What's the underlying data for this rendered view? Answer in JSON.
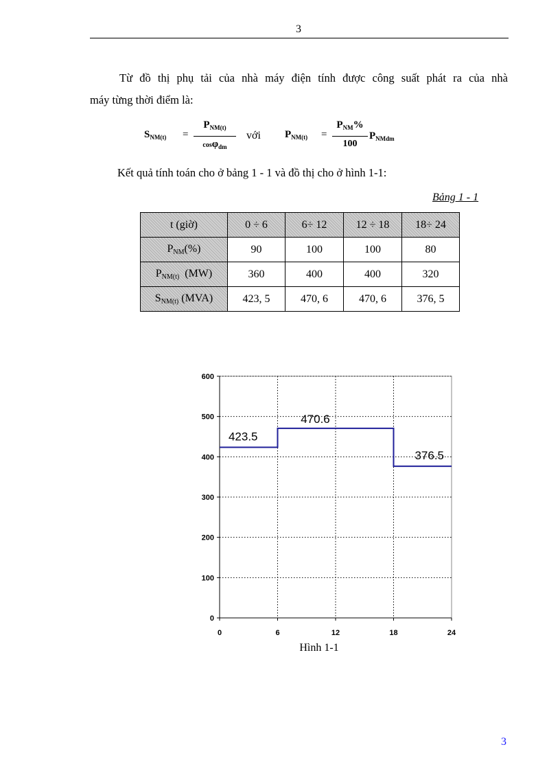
{
  "page": {
    "top_number": "3",
    "bottom_number": "3"
  },
  "paragraph1": {
    "line1": "Từ đồ thị phụ tải của nhà máy điện tính được công suất phát ra của nhà",
    "line2": "máy từng thời điểm là:"
  },
  "formula": {
    "lhs": "S",
    "lhs_sub": "NM(t)",
    "eq": "=",
    "num1": "P",
    "num1_sub": "NM(t)",
    "den1_cos": "cos",
    "den1_phi": "φ",
    "den1_sub": "dm",
    "connector": "với",
    "lhs2": "P",
    "lhs2_sub": "NM(t)",
    "eq2": "=",
    "num2": "P",
    "num2_sub": "NM",
    "num2_pct": "%",
    "den2": "100",
    "rhs2": "P",
    "rhs2_sub": "NMdm"
  },
  "paragraph2": "Kết quả tính toán cho ở bảng 1 - 1 và đồ thị cho ở hình 1-1:",
  "table": {
    "caption": "Bảng 1 - 1",
    "header": {
      "label": "t (giờ)",
      "cols": [
        "0 ÷ 6",
        "6÷ 12",
        "12 ÷ 18",
        "18÷ 24"
      ]
    },
    "rows": [
      {
        "label_main": "P",
        "label_sub": "NM",
        "label_tail": "(%)",
        "values": [
          "90",
          "100",
          "100",
          "80"
        ]
      },
      {
        "label_main": "P",
        "label_sub": "NM(t)",
        "label_tail": "  (MW)",
        "values": [
          "360",
          "400",
          "400",
          "320"
        ]
      },
      {
        "label_main": "S",
        "label_sub": "NM(t)",
        "label_tail": " (MVA)",
        "values": [
          "423, 5",
          "470, 6",
          "470, 6",
          "376, 5"
        ]
      }
    ]
  },
  "chart_data": {
    "type": "line",
    "step": true,
    "x_ticks": [
      "0",
      "6",
      "12",
      "18",
      "24"
    ],
    "y_ticks": [
      "0",
      "100",
      "200",
      "300",
      "400",
      "500",
      "600"
    ],
    "xlim": [
      0,
      24
    ],
    "ylim": [
      0,
      600
    ],
    "grid": true,
    "series": [
      {
        "color": "#1f1f99",
        "segments": [
          {
            "x0": 0,
            "x1": 6,
            "y": 423.5
          },
          {
            "x0": 6,
            "x1": 18,
            "y": 470.6
          },
          {
            "x0": 18,
            "x1": 24,
            "y": 376.5
          }
        ]
      }
    ],
    "data_labels": [
      "423.5",
      "470.6",
      "376.5"
    ]
  },
  "figure_caption": "Hình 1-1"
}
